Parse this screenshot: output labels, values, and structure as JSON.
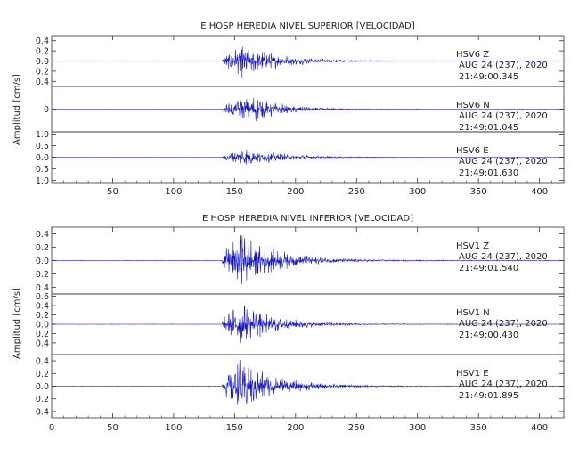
{
  "chart_data": [
    {
      "type": "line",
      "title": "E HOSP HEREDIA NIVEL SUPERIOR [VELOCIDAD]",
      "ylabel": "Amplitud [cm/s]",
      "xlabel": "",
      "xlim": [
        0,
        420
      ],
      "xticks": [
        50,
        100,
        150,
        200,
        250,
        300,
        350,
        400
      ],
      "grid": false,
      "line_color": "#1515c8",
      "panels": [
        {
          "station": "HSV6",
          "component": "Z",
          "date": "AUG 24 (237), 2020",
          "time": "21:49:00.345",
          "ylim": [
            -0.5,
            0.5
          ],
          "yticks": [
            0.4,
            0.2,
            0.0,
            -0.2,
            -0.4
          ],
          "ytick_labels": [
            "0.4",
            "0.2",
            "0.0",
            "0.2",
            "0.4"
          ],
          "onset": 140,
          "peak_time": 157,
          "peak_amp": 0.35,
          "decay": 30
        },
        {
          "station": "HSV6",
          "component": "N",
          "date": "AUG 24 (237), 2020",
          "time": "21:49:01.045",
          "ylim": [
            -1.0,
            1.0
          ],
          "yticks": [
            0
          ],
          "ytick_labels": [
            "0"
          ],
          "onset": 141,
          "peak_time": 166,
          "peak_amp": 0.7,
          "decay": 22
        },
        {
          "station": "HSV6",
          "component": "E",
          "date": "AUG 24 (237), 2020",
          "time": "21:49:01.630",
          "ylim": [
            -1.1,
            1.1
          ],
          "yticks": [
            1.0,
            0.5,
            0.0,
            -0.5,
            -1.0
          ],
          "ytick_labels": [
            "1.0",
            "0.5",
            "0.0",
            "0.5",
            "1.0"
          ],
          "onset": 140,
          "peak_time": 160,
          "peak_amp": 0.45,
          "decay": 28
        }
      ]
    },
    {
      "type": "line",
      "title": "E HOSP HEREDIA NIVEL INFERIOR [VELOCIDAD]",
      "ylabel": "Amplitud [cm/s]",
      "xlabel": "",
      "xlim": [
        0,
        420
      ],
      "xticks": [
        0,
        50,
        100,
        150,
        200,
        250,
        300,
        350,
        400
      ],
      "grid": false,
      "line_color": "#1515c8",
      "panels": [
        {
          "station": "HSV1",
          "component": "Z",
          "date": "AUG 24 (237), 2020",
          "time": "21:49:01.540",
          "ylim": [
            -0.5,
            0.5
          ],
          "yticks": [
            0.4,
            0.2,
            0.0,
            -0.2,
            -0.4
          ],
          "ytick_labels": [
            "0.4",
            "0.2",
            "0.0",
            "0.2",
            "0.4"
          ],
          "onset": 140,
          "peak_time": 155,
          "peak_amp": 0.45,
          "decay": 30
        },
        {
          "station": "HSV1",
          "component": "N",
          "date": "AUG 24 (237), 2020",
          "time": "21:49:00.430",
          "ylim": [
            -0.65,
            0.65
          ],
          "yticks": [
            0.6,
            0.4,
            0.2,
            0.0,
            -0.2,
            -0.4
          ],
          "ytick_labels": [
            "0.6",
            "0.4",
            "0.2",
            "0.0",
            "0.2",
            "0.4"
          ],
          "onset": 140,
          "peak_time": 155,
          "peak_amp": 0.5,
          "decay": 28
        },
        {
          "station": "HSV1",
          "component": "E",
          "date": "AUG 24 (237), 2020",
          "time": "21:49:01.895",
          "ylim": [
            -0.5,
            0.5
          ],
          "yticks": [
            0.4,
            0.2,
            0.0,
            -0.2,
            -0.4
          ],
          "ytick_labels": [
            "0.4",
            "0.2",
            "0.0",
            "0.2",
            "0.4"
          ],
          "onset": 140,
          "peak_time": 155,
          "peak_amp": 0.45,
          "decay": 30
        }
      ]
    }
  ]
}
